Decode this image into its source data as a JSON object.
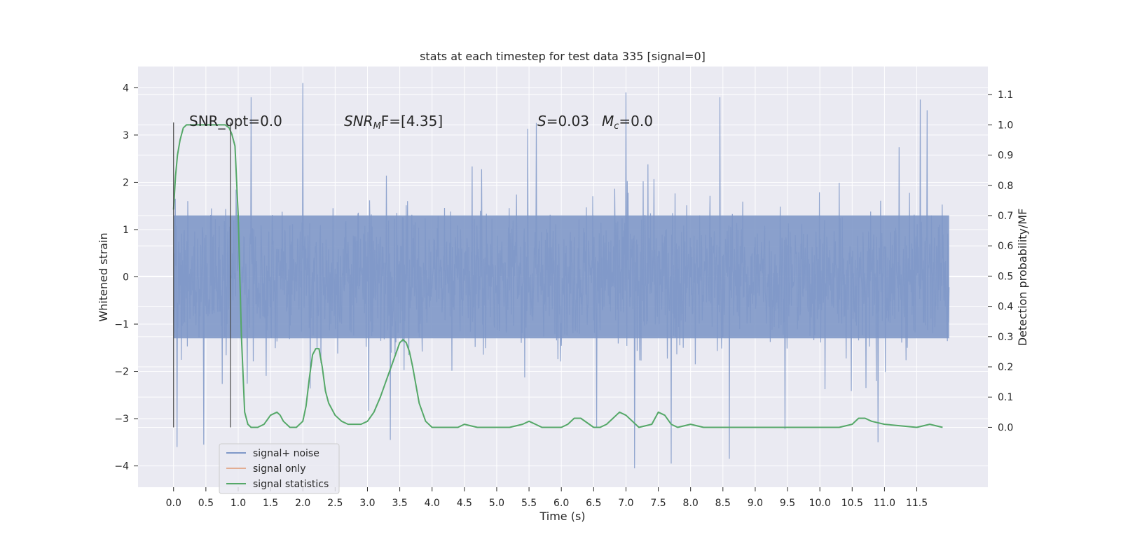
{
  "chart_data": {
    "type": "line",
    "title": "stats at each timestep for test data 335 [signal=0]",
    "xlabel": "Time (s)",
    "ylabel": "Whitened strain",
    "ylabel_right": "Detection probability/MF",
    "xlim": [
      -0.55,
      12.6
    ],
    "ylim": [
      -4.45,
      4.45
    ],
    "ylim_right": [
      -0.198,
      1.193
    ],
    "x_ticks": [
      "0.0",
      "0.5",
      "1.0",
      "1.5",
      "2.0",
      "2.5",
      "3.0",
      "3.5",
      "4.0",
      "4.5",
      "5.0",
      "5.5",
      "6.0",
      "6.5",
      "7.0",
      "7.5",
      "8.0",
      "8.5",
      "9.0",
      "9.5",
      "10.0",
      "10.5",
      "11.0",
      "11.5"
    ],
    "y_ticks": [
      "4",
      "3",
      "2",
      "1",
      "0",
      "−1",
      "−2",
      "−3",
      "−4"
    ],
    "y_ticks_right": [
      "1.1",
      "1.0",
      "0.9",
      "0.8",
      "0.7",
      "0.6",
      "0.5",
      "0.4",
      "0.3",
      "0.2",
      "0.1",
      "0.0"
    ],
    "grid": true,
    "legend_placement": "lower-left",
    "annotations": {
      "snr_opt": "SNR_opt=0.0",
      "snr_mf_prefix": "SNR",
      "snr_mf_sub": "M",
      "snr_mf_suffix": "F=[4.35]",
      "s_label": "S",
      "s_value": "=0.03",
      "mc_label": "M",
      "mc_sub": "c",
      "mc_value": "=0.0"
    },
    "series": [
      {
        "name": "signal+ noise",
        "axis": "left",
        "color": "#7f98c8",
        "style": "dense noise, roughly ±1.3 with spikes up to about ±4",
        "x_range": [
          0.0,
          12.0
        ],
        "notable_spikes": [
          {
            "x": 2.0,
            "y": 4.1
          },
          {
            "x": 7.0,
            "y": 3.9
          },
          {
            "x": 1.2,
            "y": 3.8
          },
          {
            "x": 8.45,
            "y": 3.8
          },
          {
            "x": 11.55,
            "y": 3.75
          },
          {
            "x": 0.05,
            "y": -3.6
          },
          {
            "x": 0.47,
            "y": -3.55
          },
          {
            "x": 3.35,
            "y": -3.45
          },
          {
            "x": 7.13,
            "y": -4.05
          },
          {
            "x": 7.7,
            "y": -3.95
          },
          {
            "x": 8.6,
            "y": -3.85
          },
          {
            "x": 10.9,
            "y": -3.5
          }
        ]
      },
      {
        "name": "signal only",
        "axis": "left",
        "color": "#dd8452",
        "values": []
      },
      {
        "name": "signal statistics",
        "axis": "right",
        "color": "#55a868",
        "x": [
          0.0,
          0.03,
          0.06,
          0.1,
          0.15,
          0.2,
          0.3,
          0.5,
          0.7,
          0.8,
          0.86,
          0.9,
          0.95,
          1.0,
          1.05,
          1.1,
          1.15,
          1.2,
          1.3,
          1.4,
          1.5,
          1.6,
          1.65,
          1.7,
          1.8,
          1.9,
          2.0,
          2.05,
          2.1,
          2.15,
          2.2,
          2.25,
          2.3,
          2.35,
          2.4,
          2.5,
          2.6,
          2.7,
          2.8,
          2.9,
          3.0,
          3.1,
          3.2,
          3.3,
          3.4,
          3.5,
          3.55,
          3.6,
          3.65,
          3.7,
          3.8,
          3.9,
          4.0,
          4.2,
          4.4,
          4.5,
          4.7,
          5.0,
          5.2,
          5.4,
          5.5,
          5.6,
          5.7,
          6.0,
          6.1,
          6.2,
          6.3,
          6.5,
          6.6,
          6.7,
          6.8,
          6.9,
          7.0,
          7.2,
          7.4,
          7.5,
          7.6,
          7.7,
          7.8,
          8.0,
          8.2,
          8.5,
          9.0,
          9.5,
          10.0,
          10.3,
          10.5,
          10.6,
          10.7,
          10.8,
          11.0,
          11.5,
          11.7,
          11.9
        ],
        "values": [
          0.72,
          0.83,
          0.9,
          0.95,
          0.99,
          1.0,
          1.0,
          1.0,
          1.0,
          1.0,
          0.99,
          0.97,
          0.93,
          0.7,
          0.3,
          0.05,
          0.01,
          0.0,
          0.0,
          0.01,
          0.04,
          0.05,
          0.04,
          0.02,
          0.0,
          0.0,
          0.02,
          0.07,
          0.16,
          0.24,
          0.26,
          0.26,
          0.2,
          0.12,
          0.08,
          0.04,
          0.02,
          0.01,
          0.01,
          0.01,
          0.02,
          0.05,
          0.1,
          0.16,
          0.22,
          0.28,
          0.29,
          0.28,
          0.25,
          0.2,
          0.08,
          0.02,
          0.0,
          0.0,
          0.0,
          0.01,
          0.0,
          0.0,
          0.0,
          0.01,
          0.02,
          0.01,
          0.0,
          0.0,
          0.01,
          0.03,
          0.03,
          0.0,
          0.0,
          0.01,
          0.03,
          0.05,
          0.04,
          0.0,
          0.01,
          0.05,
          0.04,
          0.01,
          0.0,
          0.01,
          0.0,
          0.0,
          0.0,
          0.0,
          0.0,
          0.0,
          0.01,
          0.03,
          0.03,
          0.02,
          0.01,
          0.0,
          0.01,
          0.0
        ]
      }
    ],
    "vertical_markers": [
      0.0,
      0.88
    ],
    "marker_range_right": [
      0.0,
      1.0
    ]
  }
}
